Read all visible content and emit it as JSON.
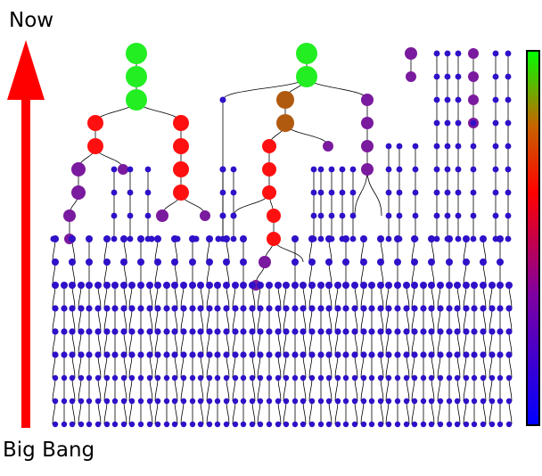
{
  "labels": {
    "top": "Now",
    "bottom": "Big Bang"
  },
  "colors": {
    "arrow": "#ff0000",
    "edge": "#000000",
    "scale_stops": [
      "#0000ff",
      "#800080",
      "#ff0000",
      "#b05a10",
      "#00ff00"
    ]
  }
}
